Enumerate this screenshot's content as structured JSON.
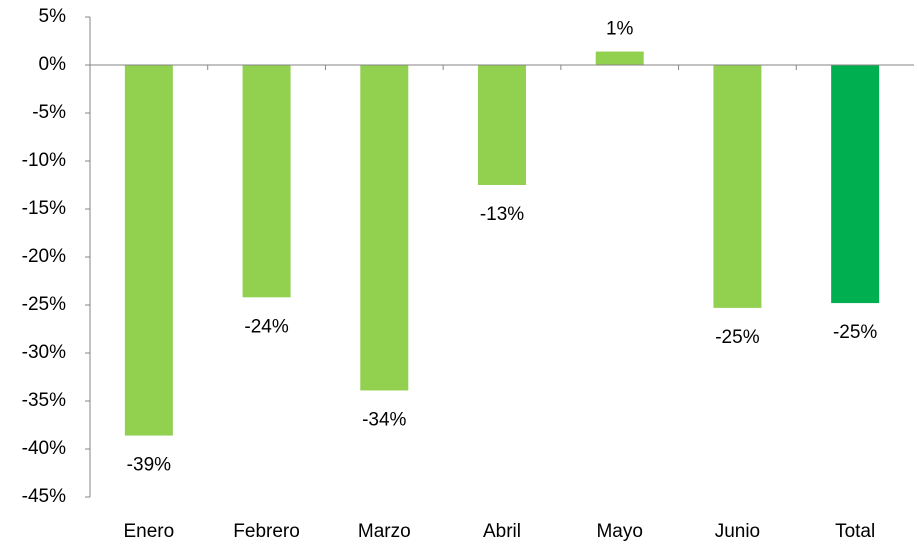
{
  "chart_data": {
    "type": "bar",
    "categories": [
      "Enero",
      "Febrero",
      "Marzo",
      "Abril",
      "Mayo",
      "Junio",
      "Total"
    ],
    "values": [
      -38.6,
      -24.2,
      -33.9,
      -12.5,
      1.4,
      -25.3,
      -24.8
    ],
    "value_labels": [
      "-39%",
      "-24%",
      "-34%",
      "-13%",
      "1%",
      "-25%",
      "-25%"
    ],
    "colors": [
      "#92d050",
      "#92d050",
      "#92d050",
      "#92d050",
      "#92d050",
      "#92d050",
      "#00b050"
    ],
    "ylim": [
      -45,
      5
    ],
    "yticks": [
      {
        "value": 5,
        "label": "5%"
      },
      {
        "value": 0,
        "label": "0%"
      },
      {
        "value": -5,
        "label": "-5%"
      },
      {
        "value": -10,
        "label": "-10%"
      },
      {
        "value": -15,
        "label": "-15%"
      },
      {
        "value": -20,
        "label": "-20%"
      },
      {
        "value": -25,
        "label": "-25%"
      },
      {
        "value": -30,
        "label": "-30%"
      },
      {
        "value": -35,
        "label": "-35%"
      },
      {
        "value": -40,
        "label": "-40%"
      },
      {
        "value": -45,
        "label": "-45%"
      }
    ],
    "grid": false
  }
}
